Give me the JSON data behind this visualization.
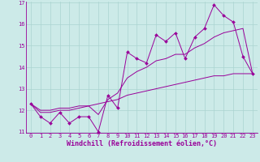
{
  "x_data": [
    0,
    1,
    2,
    3,
    4,
    5,
    6,
    7,
    8,
    9,
    10,
    11,
    12,
    13,
    14,
    15,
    16,
    17,
    18,
    19,
    20,
    21,
    22,
    23
  ],
  "y_main": [
    12.3,
    11.7,
    11.4,
    11.9,
    11.4,
    11.7,
    11.7,
    11.0,
    12.7,
    12.1,
    14.7,
    14.4,
    14.2,
    15.5,
    15.2,
    15.6,
    14.4,
    15.4,
    15.8,
    16.9,
    16.4,
    16.1,
    14.5,
    13.7
  ],
  "y_trend1": [
    12.3,
    12.0,
    12.0,
    12.1,
    12.1,
    12.2,
    12.2,
    12.3,
    12.4,
    12.5,
    12.7,
    12.8,
    12.9,
    13.0,
    13.1,
    13.2,
    13.3,
    13.4,
    13.5,
    13.6,
    13.6,
    13.7,
    13.7,
    13.7
  ],
  "y_trend2": [
    12.3,
    11.9,
    11.9,
    12.0,
    12.0,
    12.1,
    12.2,
    11.8,
    12.5,
    12.8,
    13.5,
    13.8,
    14.0,
    14.3,
    14.4,
    14.6,
    14.6,
    14.9,
    15.1,
    15.4,
    15.6,
    15.7,
    15.8,
    13.7
  ],
  "ylim": [
    11.0,
    17.0
  ],
  "yticks": [
    11,
    12,
    13,
    14,
    15,
    16,
    17
  ],
  "xlim": [
    -0.5,
    23.5
  ],
  "xticks": [
    0,
    1,
    2,
    3,
    4,
    5,
    6,
    7,
    8,
    9,
    10,
    11,
    12,
    13,
    14,
    15,
    16,
    17,
    18,
    19,
    20,
    21,
    22,
    23
  ],
  "xlabel": "Windchill (Refroidissement éolien,°C)",
  "line_color": "#990099",
  "bg_color": "#cceae8",
  "grid_color": "#aad4d0",
  "tick_fontsize": 5.0,
  "label_fontsize": 6.0
}
